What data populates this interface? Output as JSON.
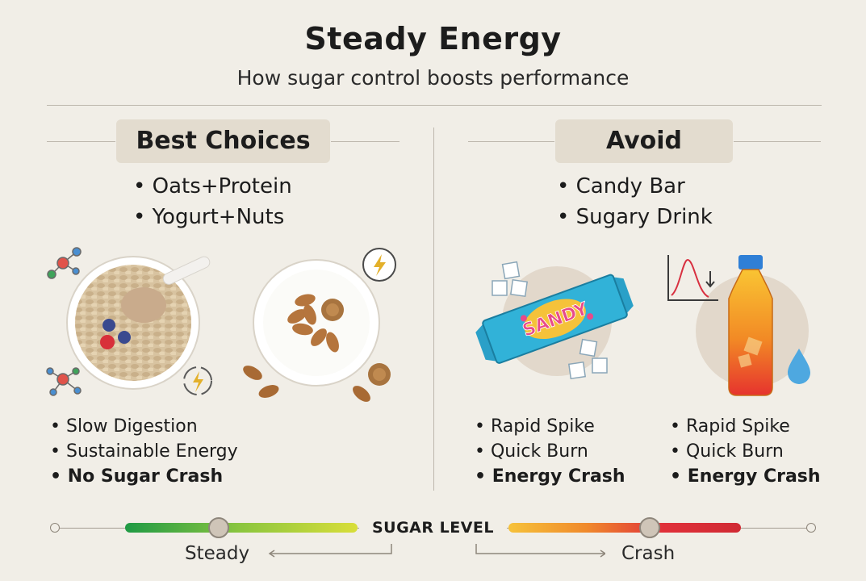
{
  "header": {
    "title": "Steady Energy",
    "subtitle": "How sugar control boosts performance"
  },
  "best": {
    "heading": "Best Choices",
    "foods": [
      "Oats+Protein",
      "Yogurt+Nuts"
    ],
    "effects": [
      "Slow Digestion",
      "Sustainable Energy",
      "No Sugar Crash"
    ]
  },
  "avoid": {
    "heading": "Avoid",
    "foods": [
      "Candy Bar",
      "Sugary Drink"
    ],
    "candy_wrapper_text": "SANDY",
    "candy_effects": [
      "Rapid Spike",
      "Quick Burn",
      "Energy Crash"
    ],
    "drink_effects": [
      "Rapid Spike",
      "Quick Burn",
      "Energy Crash"
    ]
  },
  "scale": {
    "label": "SUGAR LEVEL",
    "left_label": "Steady",
    "right_label": "Crash"
  },
  "icons": [
    "molecule-icon",
    "clock-bolt-icon",
    "recycle-bolt-icon",
    "sugar-cube-icon",
    "spike-chart-icon",
    "water-drop-icon"
  ],
  "colors": {
    "steady": "#2aa84a",
    "crash": "#e0303a",
    "panel_tag": "#e3dccf"
  }
}
